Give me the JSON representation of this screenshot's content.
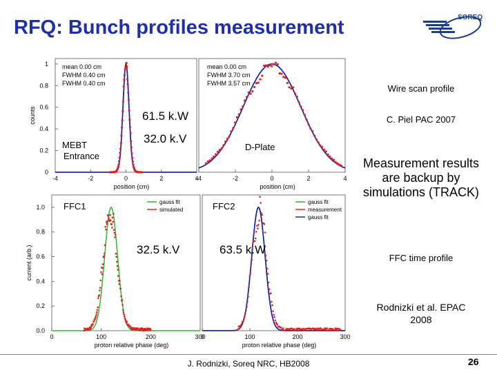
{
  "slide": {
    "title": "RFQ: Bunch profiles measurement",
    "logo_text": "SOREQ",
    "wire_scan_label": "Wire scan profile",
    "citation1": "C. Piel PAC 2007",
    "measurement_note": "Measurement results are backup by simulations (TRACK)",
    "ffc_label": "FFC time profile",
    "citation2": "Rodnizki et al. EPAC 2008",
    "footer": "J. Rodnizki, Soreq NRC, HB2008",
    "page_number": "26"
  },
  "chart_data": [
    {
      "type": "scatter",
      "name_label": "MEBT Entrance",
      "annotation": "61.5 k.W",
      "stats": [
        "mean 0.00 cm",
        "FWHM 0.40 cm",
        "FWHM 0.40 cm"
      ],
      "ylabel": "counts",
      "xlabel": "position (cm)",
      "xlim": [
        -4,
        4
      ],
      "ylim": [
        0,
        1.05
      ],
      "xticks": [
        "-4",
        "-2",
        "0",
        "2",
        "4"
      ],
      "yticks": [
        "0",
        "0.2",
        "0.4",
        "0.6",
        "0.8",
        "1"
      ],
      "fit": {
        "mean": 0.0,
        "sigma": 0.17
      },
      "measured": {
        "mean": 0.0,
        "sigma": 0.18,
        "x_from": -0.9,
        "x_to": 0.9
      }
    },
    {
      "type": "scatter",
      "name_label": "D-Plate",
      "annotation": "32.0 k.V",
      "stats": [
        "mean 0.00 cm",
        "FWHM 3.70 cm",
        "FWHM 3.57 cm"
      ],
      "xlabel": "position (cm)",
      "xlim": [
        -4,
        4
      ],
      "ylim": [
        0,
        1.05
      ],
      "xticks": [
        "-4",
        "-2",
        "0",
        "2",
        "4"
      ],
      "fit": {
        "mean": 0.0,
        "sigma": 1.57
      },
      "measured": {
        "mean": 0.0,
        "sigma": 1.62,
        "x_from": -3.6,
        "x_to": 3.8
      }
    },
    {
      "type": "line",
      "name_label": "FFC1",
      "annotation": "32.5 k.V",
      "ylabel": "current (arb.)",
      "xlabel": "proton relative phase (deg)",
      "xlim": [
        0,
        300
      ],
      "ylim": [
        0,
        1.1
      ],
      "xticks": [
        "0",
        "100",
        "200",
        "300"
      ],
      "yticks": [
        "0.0",
        "0.2",
        "0.4",
        "0.6",
        "0.8",
        "1.0"
      ],
      "legend": [
        "gauss fit",
        "simulated"
      ],
      "fit": {
        "mean": 120,
        "sigma": 13
      },
      "simulated": {
        "mean": 118,
        "sigma": 14,
        "x_from": 65,
        "x_to": 200
      }
    },
    {
      "type": "line",
      "name_label": "FFC2",
      "annotation": "63.5 k.W",
      "xlabel": "proton relative phase (deg)",
      "xlim": [
        0,
        300
      ],
      "ylim": [
        0,
        1.1
      ],
      "xticks": [
        "0",
        "100",
        "200",
        "300"
      ],
      "legend": [
        "gauss fit",
        "measurement",
        "gauss fit"
      ],
      "fit": {
        "mean": 118,
        "sigma": 14
      },
      "measured": {
        "mean": 120,
        "sigma": 15,
        "x_from": 75,
        "x_to": 290
      }
    }
  ],
  "colors": {
    "title": "#1f2fa8",
    "measured": "#e02020",
    "fit_blue": "#1a2a9a",
    "fit_green": "#2cb52c"
  }
}
